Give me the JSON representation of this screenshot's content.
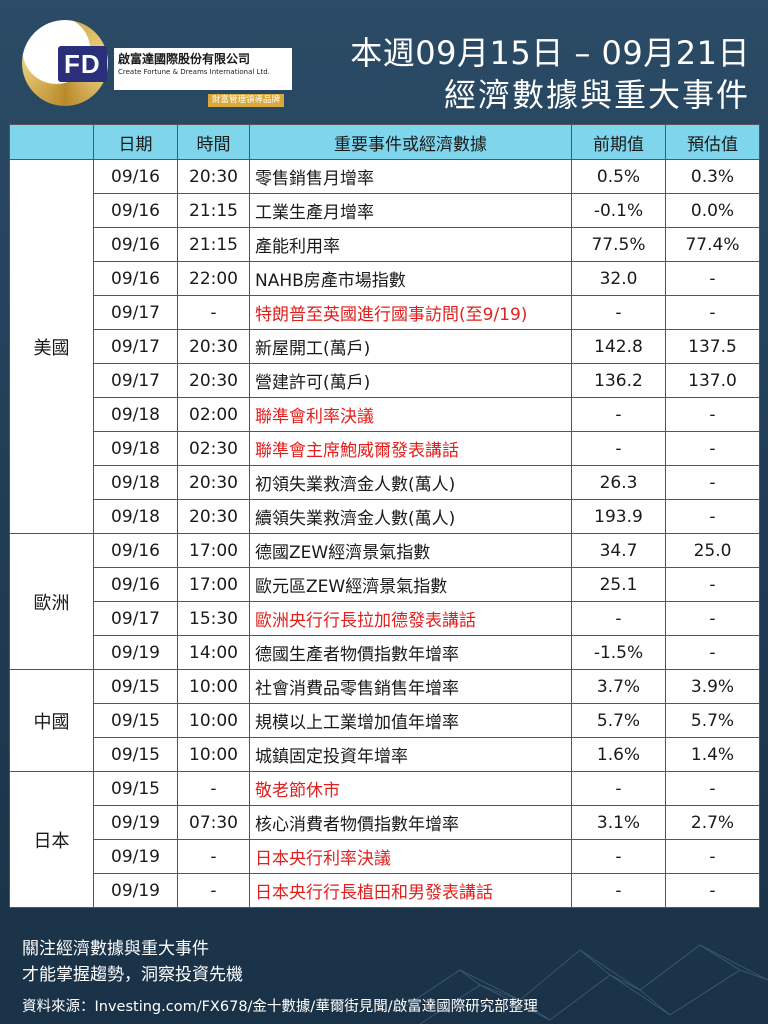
{
  "brand": {
    "logo_letters": "FD",
    "name_cn": "啟富達國際股份有限公司",
    "name_en": "Create Fortune & Dreams International Ltd.",
    "slogan": "財富管理領導品牌"
  },
  "header": {
    "title_line1": "本週09月15日 – 09月21日",
    "title_line2": "經濟數據與重大事件"
  },
  "table": {
    "columns": [
      "",
      "日期",
      "時間",
      "重要事件或經濟數據",
      "前期值",
      "預估值"
    ],
    "regions": [
      "美國",
      "歐洲",
      "中國",
      "日本"
    ],
    "rows": [
      {
        "date": "09/16",
        "time": "20:30",
        "event": "零售銷售月增率",
        "prev": "0.5%",
        "est": "0.3%",
        "highlight": false
      },
      {
        "date": "09/16",
        "time": "21:15",
        "event": "工業生產月增率",
        "prev": "-0.1%",
        "est": "0.0%",
        "highlight": false
      },
      {
        "date": "09/16",
        "time": "21:15",
        "event": "產能利用率",
        "prev": "77.5%",
        "est": "77.4%",
        "highlight": false
      },
      {
        "date": "09/16",
        "time": "22:00",
        "event": "NAHB房產市場指數",
        "prev": "32.0",
        "est": "-",
        "highlight": false
      },
      {
        "date": "09/17",
        "time": "-",
        "event": "特朗普至英國進行國事訪問(至9/19)",
        "prev": "-",
        "est": "-",
        "highlight": true
      },
      {
        "date": "09/17",
        "time": "20:30",
        "event": "新屋開工(萬戶)",
        "prev": "142.8",
        "est": "137.5",
        "highlight": false
      },
      {
        "date": "09/17",
        "time": "20:30",
        "event": "營建許可(萬戶)",
        "prev": "136.2",
        "est": "137.0",
        "highlight": false
      },
      {
        "date": "09/18",
        "time": "02:00",
        "event": "聯準會利率決議",
        "prev": "-",
        "est": "-",
        "highlight": true
      },
      {
        "date": "09/18",
        "time": "02:30",
        "event": "聯準會主席鮑威爾發表講話",
        "prev": "-",
        "est": "-",
        "highlight": true
      },
      {
        "date": "09/18",
        "time": "20:30",
        "event": "初領失業救濟金人數(萬人)",
        "prev": "26.3",
        "est": "-",
        "highlight": false
      },
      {
        "date": "09/18",
        "time": "20:30",
        "event": "續領失業救濟金人數(萬人)",
        "prev": "193.9",
        "est": "-",
        "highlight": false
      },
      {
        "date": "09/16",
        "time": "17:00",
        "event": "德國ZEW經濟景氣指數",
        "prev": "34.7",
        "est": "25.0",
        "highlight": false
      },
      {
        "date": "09/16",
        "time": "17:00",
        "event": "歐元區ZEW經濟景氣指數",
        "prev": "25.1",
        "est": "-",
        "highlight": false
      },
      {
        "date": "09/17",
        "time": "15:30",
        "event": "歐洲央行行長拉加德發表講話",
        "prev": "-",
        "est": "-",
        "highlight": true
      },
      {
        "date": "09/19",
        "time": "14:00",
        "event": "德國生產者物價指數年增率",
        "prev": "-1.5%",
        "est": "-",
        "highlight": false
      },
      {
        "date": "09/15",
        "time": "10:00",
        "event": "社會消費品零售銷售年增率",
        "prev": "3.7%",
        "est": "3.9%",
        "highlight": false
      },
      {
        "date": "09/15",
        "time": "10:00",
        "event": "規模以上工業增加值年增率",
        "prev": "5.7%",
        "est": "5.7%",
        "highlight": false
      },
      {
        "date": "09/15",
        "time": "10:00",
        "event": "城鎮固定投資年增率",
        "prev": "1.6%",
        "est": "1.4%",
        "highlight": false
      },
      {
        "date": "09/15",
        "time": "-",
        "event": "敬老節休市",
        "prev": "-",
        "est": "-",
        "highlight": true
      },
      {
        "date": "09/19",
        "time": "07:30",
        "event": "核心消費者物價指數年增率",
        "prev": "3.1%",
        "est": "2.7%",
        "highlight": false
      },
      {
        "date": "09/19",
        "time": "-",
        "event": "日本央行利率決議",
        "prev": "-",
        "est": "-",
        "highlight": true
      },
      {
        "date": "09/19",
        "time": "-",
        "event": "日本央行行長植田和男發表講話",
        "prev": "-",
        "est": "-",
        "highlight": true
      }
    ]
  },
  "footer": {
    "line1": "關注經濟數據與重大事件",
    "line2": "才能掌握趨勢，洞察投資先機",
    "source": "資料來源：Investing.com/FX678/金十數據/華爾街見聞/啟富達國際研究部整理"
  },
  "colors": {
    "header_bg": "#7fd6ec",
    "highlight_text": "#e0201e",
    "page_bg": "#2b4b66"
  }
}
